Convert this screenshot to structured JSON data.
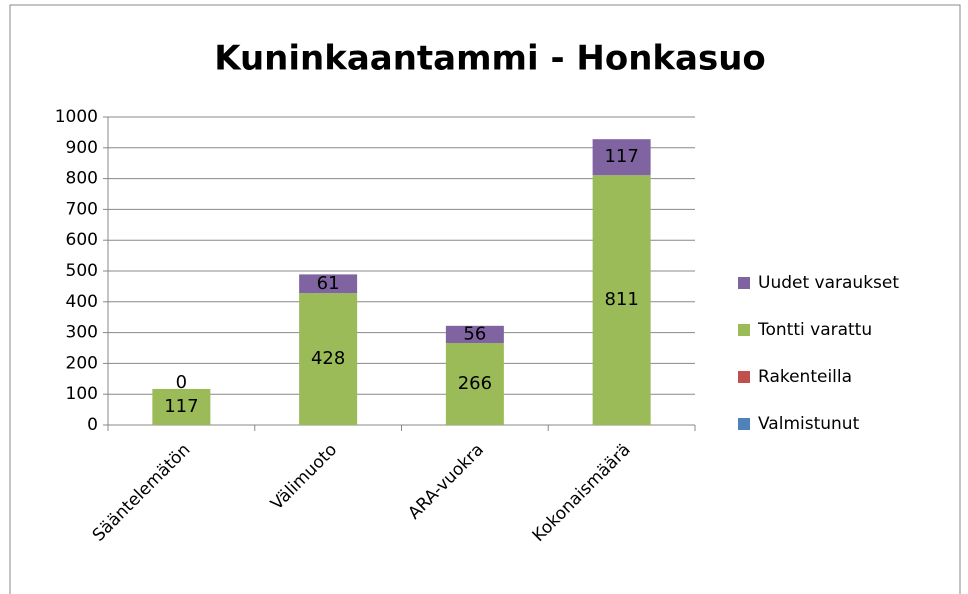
{
  "chart_data": {
    "type": "bar",
    "stacked": true,
    "title": "Kuninkaantammi - Honkasuo",
    "categories": [
      "Sääntelemätön",
      "Välimuoto",
      "ARA-vuokra",
      "Kokonaismäärä"
    ],
    "series": [
      {
        "name": "Valmistunut",
        "color": "#4f81bd",
        "values": [
          0,
          0,
          0,
          0
        ]
      },
      {
        "name": "Rakenteilla",
        "color": "#c0504d",
        "values": [
          0,
          0,
          0,
          0
        ]
      },
      {
        "name": "Tontti varattu",
        "color": "#9bbb59",
        "values": [
          117,
          428,
          266,
          811
        ],
        "labels": true
      },
      {
        "name": "Uudet varaukset",
        "color": "#8064a2",
        "values": [
          0,
          61,
          56,
          117
        ],
        "labels": true
      }
    ],
    "ylim": [
      0,
      1000
    ],
    "yticks": [
      0,
      100,
      200,
      300,
      400,
      500,
      600,
      700,
      800,
      900,
      1000
    ],
    "grid": true,
    "legend": "right"
  }
}
